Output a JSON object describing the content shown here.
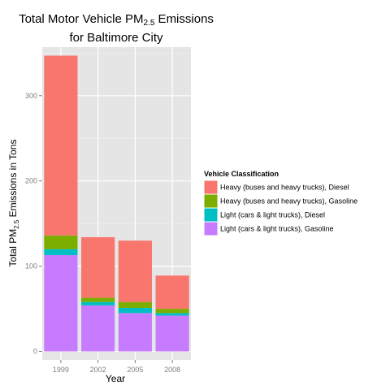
{
  "chart_data": {
    "type": "bar",
    "stacked": true,
    "title": {
      "line1_prefix": "Total Motor Vehicle PM",
      "line1_sub": "2.5",
      "line1_suffix": " Emissions",
      "line2": "for Baltimore City"
    },
    "xlabel": "Year",
    "ylabel": {
      "prefix": "Total PM",
      "sub": "2.5",
      "suffix": " Emissions in Tons"
    },
    "categories": [
      "1999",
      "2002",
      "2005",
      "2008"
    ],
    "ylim": [
      -10,
      357
    ],
    "yticks": [
      0,
      100,
      200,
      300
    ],
    "grid": true,
    "legend": {
      "title": "Vehicle Classification",
      "position": "right"
    },
    "series": [
      {
        "name": "Light (cars & light trucks), Gasoline",
        "color": "#C77CFF",
        "values": [
          113,
          54,
          45,
          42
        ]
      },
      {
        "name": "Light (cars & light trucks), Diesel",
        "color": "#00BFC4",
        "values": [
          7,
          4,
          6,
          3
        ]
      },
      {
        "name": "Heavy (buses and heavy trucks), Gasoline",
        "color": "#7CAE00",
        "values": [
          16,
          5,
          7,
          5
        ]
      },
      {
        "name": "Heavy (buses and heavy trucks), Diesel",
        "color": "#F8766D",
        "values": [
          211,
          71,
          72,
          39
        ]
      }
    ],
    "legend_order": [
      3,
      2,
      1,
      0
    ]
  }
}
